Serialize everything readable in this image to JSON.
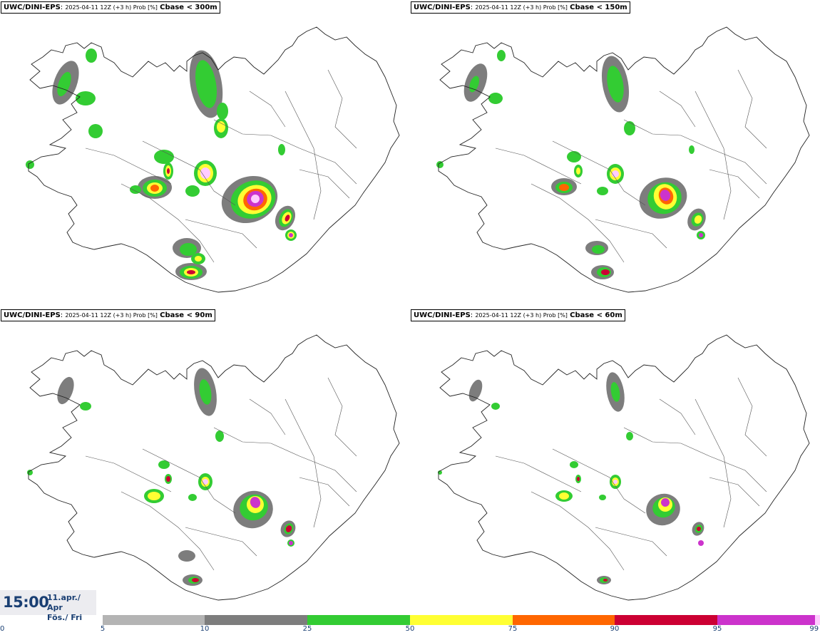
{
  "panels": [
    {
      "model": "UWC/DINI-EPS",
      "meta": "2025-04-11 12Z (+3 h) Prob [%]",
      "threshold": "Cbase < 300m"
    },
    {
      "model": "UWC/DINI-EPS",
      "meta": "2025-04-11 12Z (+3 h) Prob [%]",
      "threshold": "Cbase < 150m"
    },
    {
      "model": "UWC/DINI-EPS",
      "meta": "2025-04-11 12Z (+3 h) Prob [%]",
      "threshold": "Cbase < 90m"
    },
    {
      "model": "UWC/DINI-EPS",
      "meta": "2025-04-11 12Z (+3 h) Prob [%]",
      "threshold": "Cbase < 60m"
    }
  ],
  "valid_time": {
    "clock": "15:00",
    "date_line1": "11.apr./ Apr",
    "date_line2": "Fös./ Fri"
  },
  "legend": {
    "labels": [
      "0",
      "5",
      "10",
      "25",
      "50",
      "75",
      "90",
      "95",
      "99"
    ],
    "segments": [
      {
        "from": "5",
        "to": "10",
        "color": "#b4b4b4"
      },
      {
        "from": "10",
        "to": "25",
        "color": "#7d7d7d"
      },
      {
        "from": "25",
        "to": "50",
        "color": "#33cc33"
      },
      {
        "from": "50",
        "to": "75",
        "color": "#ffff33"
      },
      {
        "from": "75",
        "to": "90",
        "color": "#ff6600"
      },
      {
        "from": "90",
        "to": "95",
        "color": "#cc0033"
      },
      {
        "from": "95",
        "to": "99",
        "color": "#cc33cc"
      },
      {
        "from": "99",
        "to": "100",
        "color": "#ffccff"
      }
    ]
  }
}
